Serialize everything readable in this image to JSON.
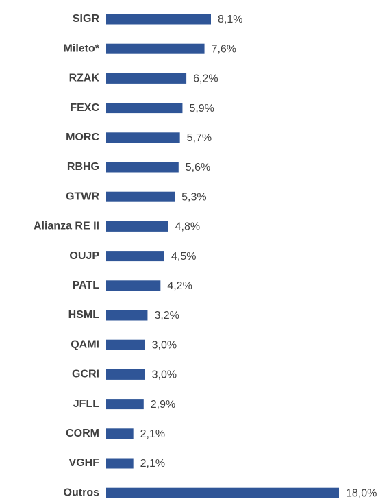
{
  "chart_data": {
    "type": "barh",
    "categories": [
      "SIGR",
      "Mileto*",
      "RZAK",
      "FEXC",
      "MORC",
      "RBHG",
      "GTWR",
      "Alianza RE II",
      "OUJP",
      "PATL",
      "HSML",
      "QAMI",
      "GCRI",
      "JFLL",
      "CORM",
      "VGHF",
      "Outros"
    ],
    "values": [
      8.1,
      7.6,
      6.2,
      5.9,
      5.7,
      5.6,
      5.3,
      4.8,
      4.5,
      4.2,
      3.2,
      3.0,
      3.0,
      2.9,
      2.1,
      2.1,
      18.0
    ],
    "value_labels": [
      "8,1%",
      "7,6%",
      "6,2%",
      "5,9%",
      "5,7%",
      "5,6%",
      "5,3%",
      "4,8%",
      "4,5%",
      "4,2%",
      "3,2%",
      "3,0%",
      "3,0%",
      "2,9%",
      "2,1%",
      "2,1%",
      "18,0%"
    ],
    "color": "#2f5597"
  }
}
